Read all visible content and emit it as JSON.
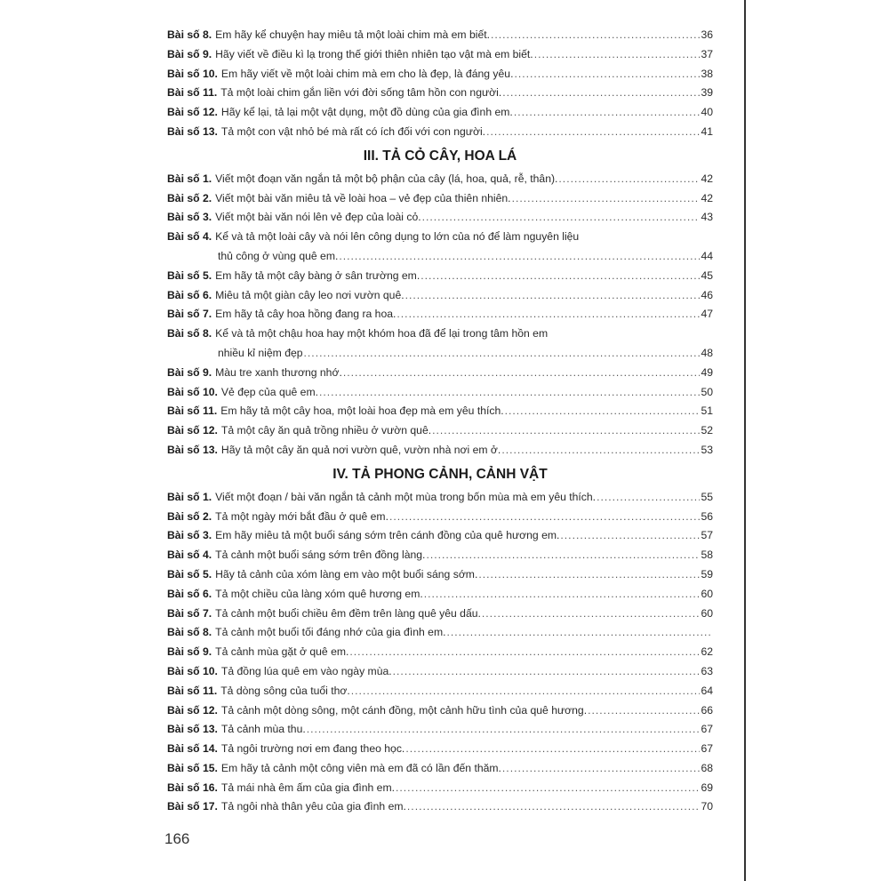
{
  "prefix": "Bài số",
  "sections": [
    {
      "heading": "",
      "items": [
        {
          "num": "8.",
          "lines": [
            "Em hãy kể chuyện hay miêu tả một loài chim mà em biết."
          ],
          "page": "36"
        },
        {
          "num": "9.",
          "lines": [
            "Hãy viết về điều kì lạ trong thế giới thiên nhiên tạo vật mà em biết."
          ],
          "page": "37"
        },
        {
          "num": "10.",
          "lines": [
            "Em hãy viết về một loài chim mà em cho là đẹp, là đáng yêu."
          ],
          "page": "38"
        },
        {
          "num": "11.",
          "lines": [
            "Tả một loài chim gắn liền với đời sống tâm hồn con người."
          ],
          "page": "39"
        },
        {
          "num": "12.",
          "lines": [
            "Hãy kể lại, tả lại một vật dụng, một đồ dùng của gia đình em."
          ],
          "page": "40"
        },
        {
          "num": "13.",
          "lines": [
            "Tả một con vật nhỏ bé mà rất có ích đối với con người."
          ],
          "page": "41"
        }
      ]
    },
    {
      "heading": "III. TẢ CỎ CÂY, HOA LÁ",
      "items": [
        {
          "num": "1.",
          "lines": [
            "Viết một đoạn văn ngắn tả một bộ phận của cây (lá, hoa, quả, rễ, thân)."
          ],
          "page": "42"
        },
        {
          "num": "2.",
          "lines": [
            "Viết một bài văn miêu tả về loài hoa – vẻ đẹp của thiên nhiên."
          ],
          "page": "42"
        },
        {
          "num": "3.",
          "lines": [
            "Viết một bài văn nói lên vẻ đẹp của loài cỏ."
          ],
          "page": "43"
        },
        {
          "num": "4.",
          "lines": [
            "Kể và tả một loài cây và nói lên công dụng to lớn của nó để làm nguyên liệu",
            "thủ công ở vùng quê em."
          ],
          "page": "44"
        },
        {
          "num": "5.",
          "lines": [
            "Em hãy tả một cây bàng ở sân trường em."
          ],
          "page": "45"
        },
        {
          "num": "6.",
          "lines": [
            "Miêu tả một giàn cây leo nơi vườn quê."
          ],
          "page": "46"
        },
        {
          "num": "7.",
          "lines": [
            "Em hãy tả cây hoa hồng đang ra hoa."
          ],
          "page": "47"
        },
        {
          "num": "8.",
          "lines": [
            "Kể và tả một chậu hoa hay một khóm hoa đã để lại trong tâm hồn em",
            "nhiều kỉ niệm đẹp"
          ],
          "page": "48"
        },
        {
          "num": "9.",
          "lines": [
            "Màu tre xanh thương nhớ."
          ],
          "page": "49"
        },
        {
          "num": "10.",
          "lines": [
            "Vẻ đẹp của quê em."
          ],
          "page": "50"
        },
        {
          "num": "11.",
          "lines": [
            "Em hãy tả một cây hoa, một loài hoa đẹp mà em yêu thích."
          ],
          "page": "51"
        },
        {
          "num": "12.",
          "lines": [
            "Tả một cây ăn quả trồng nhiều ở vườn quê."
          ],
          "page": "52"
        },
        {
          "num": "13.",
          "lines": [
            "Hãy tả một cây ăn quả nơi vườn quê, vườn nhà nơi em ở."
          ],
          "page": "53"
        }
      ]
    },
    {
      "heading": "IV. TẢ PHONG CẢNH, CẢNH VẬT",
      "items": [
        {
          "num": "1.",
          "lines": [
            "Viết một đoạn / bài văn ngắn tả cảnh một mùa trong bốn mùa mà em yêu thích."
          ],
          "page": "55"
        },
        {
          "num": "2.",
          "lines": [
            "Tả một ngày mới bắt đầu ở quê em."
          ],
          "page": "56"
        },
        {
          "num": "3.",
          "lines": [
            "Em hãy miêu tả một buổi sáng sớm trên cánh đồng của quê hương em."
          ],
          "page": "57"
        },
        {
          "num": "4.",
          "lines": [
            "Tả cảnh một buổi sáng sớm trên đồng làng."
          ],
          "page": "58"
        },
        {
          "num": "5.",
          "lines": [
            "Hãy tả cảnh của xóm làng em vào một buổi sáng sớm."
          ],
          "page": "59"
        },
        {
          "num": "6.",
          "lines": [
            "Tả một chiều của làng xóm quê hương em."
          ],
          "page": "60"
        },
        {
          "num": "7.",
          "lines": [
            "Tả cảnh một buổi chiều êm đềm trên làng quê yêu dấu."
          ],
          "page": "60"
        },
        {
          "num": "8.",
          "lines": [
            "Tả cảnh một buổi tối đáng nhớ của gia đình em."
          ],
          "page": ""
        },
        {
          "num": "9.",
          "lines": [
            "Tả cảnh mùa gặt ở quê em."
          ],
          "page": "62"
        },
        {
          "num": "10.",
          "lines": [
            "Tả đồng lúa quê em vào ngày mùa."
          ],
          "page": "63"
        },
        {
          "num": "11.",
          "lines": [
            "Tả dòng sông của tuổi thơ."
          ],
          "page": "64"
        },
        {
          "num": "12.",
          "lines": [
            "Tả cảnh một dòng sông, một cánh đồng, một cảnh hữu tình của quê hương."
          ],
          "page": "66"
        },
        {
          "num": "13.",
          "lines": [
            "Tả cảnh mùa thu."
          ],
          "page": "67"
        },
        {
          "num": "14.",
          "lines": [
            "Tả ngôi trường nơi em đang theo học."
          ],
          "page": "67"
        },
        {
          "num": "15.",
          "lines": [
            "Em hãy tả cảnh một công viên mà em đã có lần đến thăm."
          ],
          "page": "68"
        },
        {
          "num": "16.",
          "lines": [
            "Tả mái nhà êm ấm của gia đình em."
          ],
          "page": "69"
        },
        {
          "num": "17.",
          "lines": [
            "Tả ngôi nhà thân yêu của gia đình em."
          ],
          "page": "70"
        }
      ]
    }
  ],
  "page_number": "166"
}
